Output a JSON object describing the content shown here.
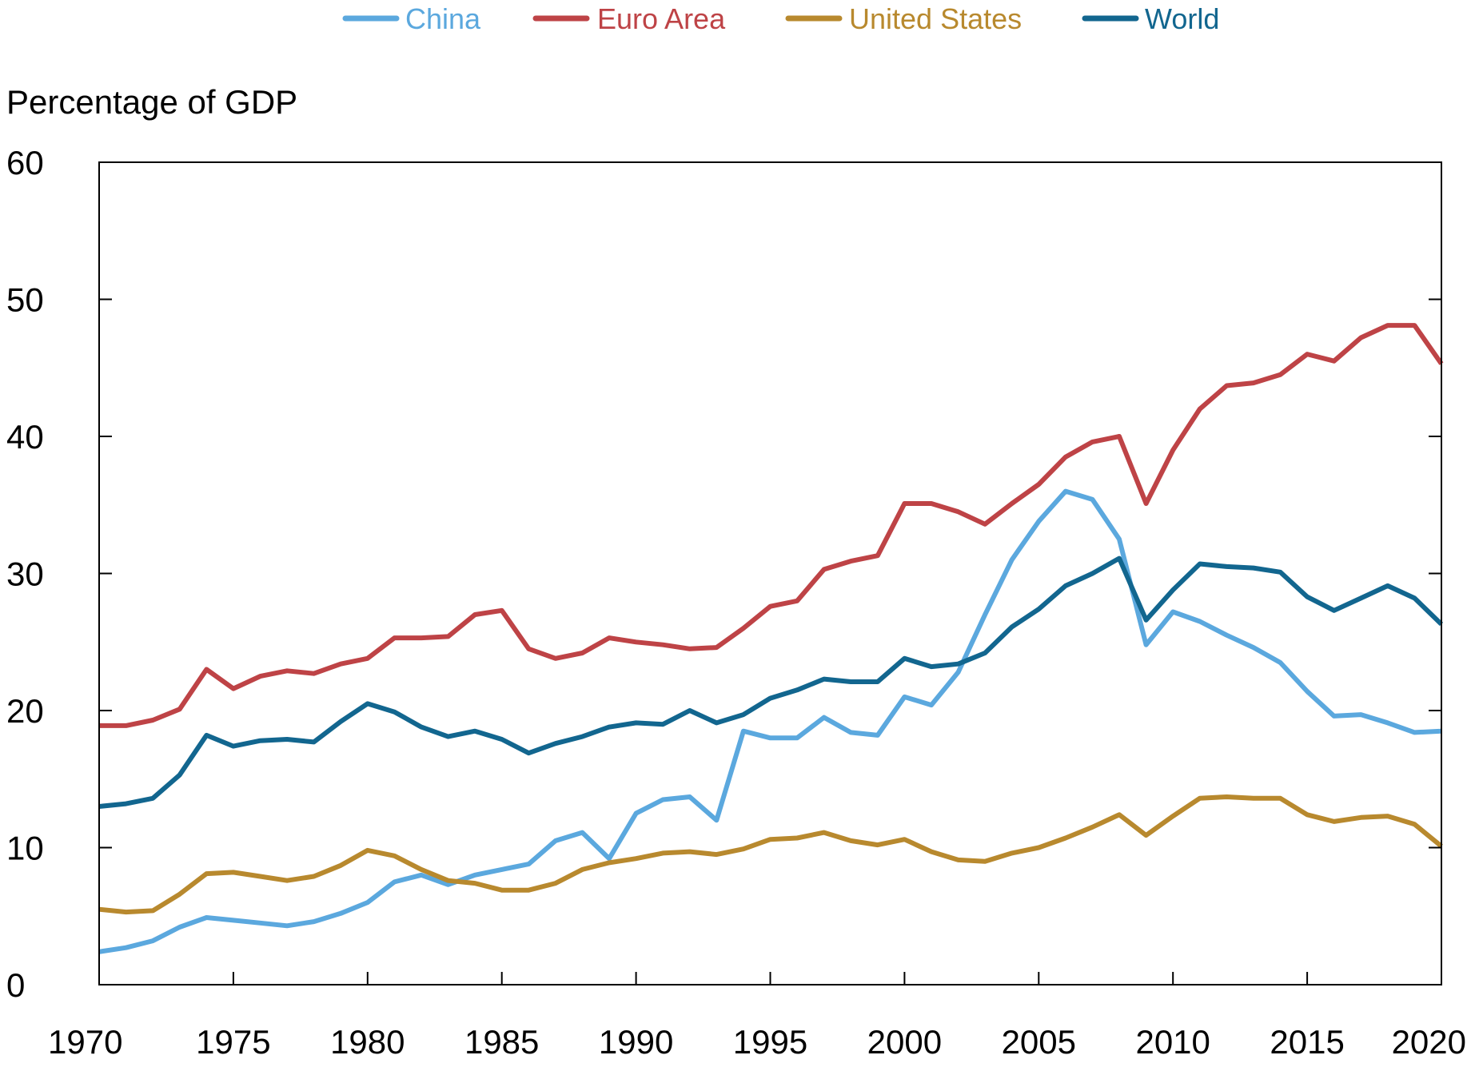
{
  "chart_data": {
    "type": "line",
    "ylabel": "Percentage of GDP",
    "xlabel": "",
    "xlim": [
      1970,
      2020
    ],
    "ylim": [
      0,
      60
    ],
    "x_ticks": [
      1970,
      1975,
      1980,
      1985,
      1990,
      1995,
      2000,
      2005,
      2010,
      2015,
      2020
    ],
    "y_ticks": [
      0,
      10,
      20,
      30,
      40,
      50,
      60
    ],
    "legend_position": "top",
    "grid": false,
    "x": [
      1970,
      1971,
      1972,
      1973,
      1974,
      1975,
      1976,
      1977,
      1978,
      1979,
      1980,
      1981,
      1982,
      1983,
      1984,
      1985,
      1986,
      1987,
      1988,
      1989,
      1990,
      1991,
      1992,
      1993,
      1994,
      1995,
      1996,
      1997,
      1998,
      1999,
      2000,
      2001,
      2002,
      2003,
      2004,
      2005,
      2006,
      2007,
      2008,
      2009,
      2010,
      2011,
      2012,
      2013,
      2014,
      2015,
      2016,
      2017,
      2018,
      2019,
      2020
    ],
    "series": [
      {
        "name": "China",
        "color": "#5BA8DE",
        "values": [
          2.4,
          2.7,
          3.2,
          4.2,
          4.9,
          4.7,
          4.5,
          4.3,
          4.6,
          5.2,
          6.0,
          7.5,
          8.0,
          7.3,
          8.0,
          8.4,
          8.8,
          10.5,
          11.1,
          9.2,
          12.5,
          13.5,
          13.7,
          12.0,
          18.5,
          18.0,
          18.0,
          19.5,
          18.4,
          18.2,
          21.0,
          20.4,
          22.8,
          27.0,
          31.0,
          33.8,
          36.0,
          35.4,
          32.5,
          24.8,
          27.2,
          26.5,
          25.5,
          24.6,
          23.5,
          21.4,
          19.6,
          19.7,
          19.1,
          18.4,
          18.5
        ]
      },
      {
        "name": "Euro Area",
        "color": "#BE4346",
        "values": [
          18.9,
          18.9,
          19.3,
          20.1,
          23.0,
          21.6,
          22.5,
          22.9,
          22.7,
          23.4,
          23.8,
          25.3,
          25.3,
          25.4,
          27.0,
          27.3,
          24.5,
          23.8,
          24.2,
          25.3,
          25.0,
          24.8,
          24.5,
          24.6,
          26.0,
          27.6,
          28.0,
          30.3,
          30.9,
          31.3,
          35.1,
          35.1,
          34.5,
          33.6,
          35.1,
          36.5,
          38.5,
          39.6,
          40.0,
          35.1,
          39.0,
          42.0,
          43.7,
          43.9,
          44.5,
          46.0,
          45.5,
          47.2,
          48.1,
          48.1,
          45.3
        ]
      },
      {
        "name": "United States",
        "color": "#B8892E",
        "values": [
          5.5,
          5.3,
          5.4,
          6.6,
          8.1,
          8.2,
          7.9,
          7.6,
          7.9,
          8.7,
          9.8,
          9.4,
          8.4,
          7.6,
          7.4,
          6.9,
          6.9,
          7.4,
          8.4,
          8.9,
          9.2,
          9.6,
          9.7,
          9.5,
          9.9,
          10.6,
          10.7,
          11.1,
          10.5,
          10.2,
          10.6,
          9.7,
          9.1,
          9.0,
          9.6,
          10.0,
          10.7,
          11.5,
          12.4,
          10.9,
          12.3,
          13.6,
          13.7,
          13.6,
          13.6,
          12.4,
          11.9,
          12.2,
          12.3,
          11.7,
          10.1
        ]
      },
      {
        "name": "World",
        "color": "#12668F",
        "values": [
          13.0,
          13.2,
          13.6,
          15.3,
          18.2,
          17.4,
          17.8,
          17.9,
          17.7,
          19.2,
          20.5,
          19.9,
          18.8,
          18.1,
          18.5,
          17.9,
          16.9,
          17.6,
          18.1,
          18.8,
          19.1,
          19.0,
          20.0,
          19.1,
          19.7,
          20.9,
          21.5,
          22.3,
          22.1,
          22.1,
          23.8,
          23.2,
          23.4,
          24.2,
          26.1,
          27.4,
          29.1,
          30.0,
          31.1,
          26.6,
          28.8,
          30.7,
          30.5,
          30.4,
          30.1,
          28.3,
          27.3,
          28.2,
          29.1,
          28.2,
          26.3
        ]
      }
    ]
  }
}
